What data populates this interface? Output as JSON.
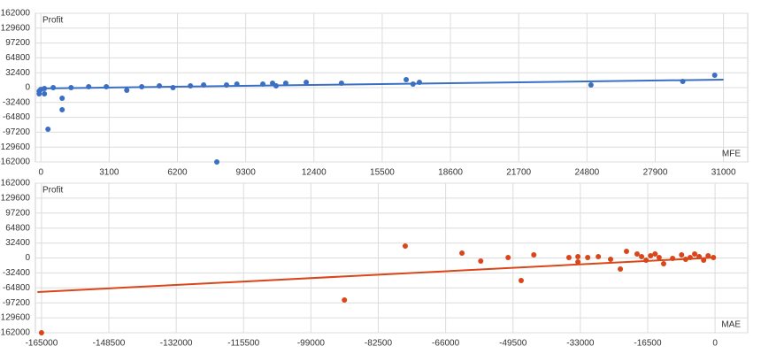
{
  "chart_data": [
    {
      "type": "scatter",
      "ylabel": "Profit",
      "xlabel": "MFE",
      "color": "#3a6fc4",
      "grid": true,
      "x": [
        321,
        964,
        964,
        7990,
        3900,
        6000,
        8430,
        8900,
        10080,
        10520,
        10680,
        11120,
        12050,
        13650,
        16590,
        16900,
        17190,
        24980,
        29150,
        30600,
        -80,
        0,
        160,
        560,
        1370,
        2170,
        2970,
        4580,
        5380,
        6790,
        7390,
        160,
        -80
      ],
      "y": [
        -90600,
        -23100,
        -48200,
        -162000,
        -5800,
        0,
        5800,
        7700,
        7700,
        9600,
        3900,
        9600,
        11600,
        9600,
        17400,
        7700,
        11600,
        5800,
        13500,
        27000,
        -7700,
        -3900,
        -1900,
        0,
        0,
        1900,
        1900,
        1900,
        3900,
        3900,
        5800,
        -13500,
        -13500
      ],
      "trend": {
        "x": [
          -100,
          31000
        ],
        "y": [
          -1900,
          17400
        ]
      },
      "xlim": [
        -250,
        32100
      ],
      "ylim": [
        -162000,
        162000
      ],
      "xticks": [
        0,
        3100,
        6200,
        9300,
        12400,
        15500,
        18600,
        21700,
        24800,
        27900,
        31000
      ],
      "yticks": [
        162000,
        129600,
        97200,
        64800,
        32400,
        0,
        -32400,
        -64800,
        -97200,
        -129600,
        -162000
      ]
    },
    {
      "type": "scatter",
      "ylabel": "Profit",
      "xlabel": "MAE",
      "color": "#d9461a",
      "grid": true,
      "x": [
        -165000,
        -90800,
        -75900,
        -62000,
        -57400,
        -50700,
        -47500,
        -44400,
        -35800,
        -33600,
        -33600,
        -31200,
        -28600,
        -25600,
        -23200,
        -21700,
        -19100,
        -18000,
        -15800,
        -14700,
        -12600,
        -10400,
        -8200,
        -6100,
        -3900,
        -1700,
        -400,
        -2800,
        -5000,
        -7200,
        -13700,
        -16900
      ],
      "y": [
        -162000,
        -91100,
        25900,
        10500,
        -6700,
        1000,
        -48900,
        6700,
        1000,
        -8600,
        2900,
        1000,
        2900,
        -2900,
        -24000,
        14400,
        8600,
        2900,
        4800,
        8600,
        -12500,
        -1000,
        6700,
        1000,
        2900,
        4800,
        1000,
        -4800,
        8600,
        -2900,
        1000,
        -4800
      ],
      "trend": {
        "x": [
          -166000,
          0
        ],
        "y": [
          -73800,
          1000
        ]
      },
      "xlim": [
        -166500,
        8000
      ],
      "ylim": [
        -162000,
        162000
      ],
      "xticks": [
        -165000,
        -148500,
        -132000,
        -115500,
        -99000,
        -82500,
        -66000,
        -49500,
        -33000,
        -16500,
        0
      ],
      "yticks": [
        162000,
        129600,
        97200,
        64800,
        32400,
        0,
        -32400,
        -64800,
        -97200,
        -129600,
        -162000
      ]
    }
  ]
}
